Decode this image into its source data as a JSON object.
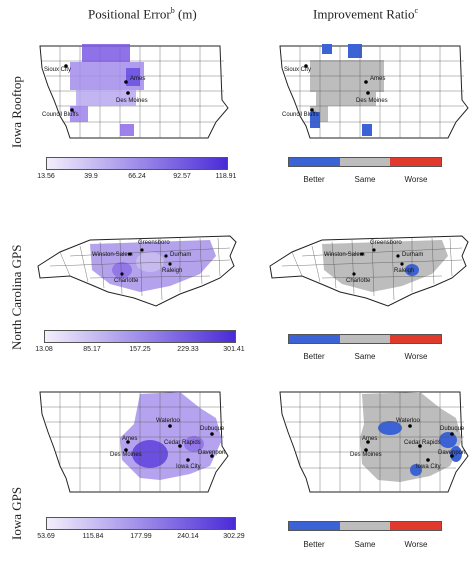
{
  "columns": {
    "left": {
      "title_main": "Positional Error",
      "title_sup": "b",
      "title_unit": " (m)"
    },
    "right": {
      "title_main": "Improvement Ratio",
      "title_sup": "c"
    }
  },
  "rows": {
    "iowa_rooftop": {
      "label": "Iowa Rooftop",
      "cities": [
        "Sioux City",
        "Ames",
        "Des Moines",
        "Council Bluffs"
      ],
      "ticks": [
        "13.56",
        "39.9",
        "66.24",
        "92.57",
        "118.91"
      ]
    },
    "nc_gps": {
      "label": "North Carolina GPS",
      "cities": [
        "Greensboro",
        "Winston-Salem",
        "Durham",
        "Raleigh",
        "Charlotte"
      ],
      "ticks": [
        "13.08",
        "85.17",
        "157.25",
        "229.33",
        "301.41"
      ]
    },
    "iowa_gps": {
      "label": "Iowa GPS",
      "cities": [
        "Waterloo",
        "Dubuque",
        "Ames",
        "Cedar Rapids",
        "Des Moines",
        "Davenport",
        "Iowa City"
      ],
      "ticks": [
        "53.69",
        "115.84",
        "177.99",
        "240.14",
        "302.29"
      ]
    }
  },
  "ratio_legend": {
    "labels": [
      "Better",
      "Same",
      "Worse"
    ]
  },
  "colors": {
    "scale_low": "#f3effb",
    "scale_high": "#4a2bd8",
    "better": "#3b63d6",
    "same": "#bdbdbd",
    "worse": "#e03a2c"
  }
}
